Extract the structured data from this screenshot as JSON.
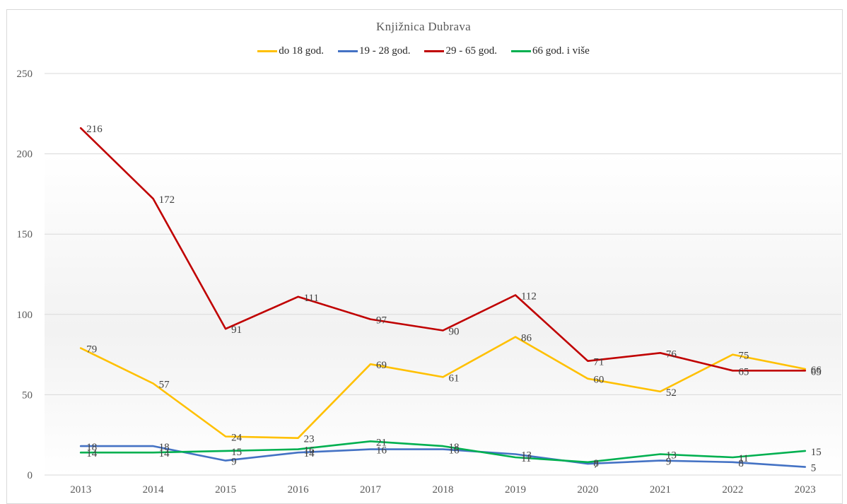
{
  "chart_data": {
    "type": "line",
    "title": "Knjižnica  Dubrava",
    "categories": [
      "2013",
      "2014",
      "2015",
      "2016",
      "2017",
      "2018",
      "2019",
      "2020",
      "2021",
      "2022",
      "2023"
    ],
    "ylim": [
      0,
      250
    ],
    "yticks": [
      0,
      50,
      100,
      150,
      200,
      250
    ],
    "grid": true,
    "legend": "top",
    "series": [
      {
        "name": "do 18 god.",
        "color": "#ffc000",
        "values": [
          79,
          57,
          24,
          23,
          69,
          61,
          86,
          60,
          52,
          75,
          66
        ]
      },
      {
        "name": "19 - 28 god.",
        "color": "#4472c4",
        "values": [
          18,
          18,
          9,
          14,
          16,
          16,
          13,
          7,
          9,
          8,
          5
        ]
      },
      {
        "name": "29 - 65 god.",
        "color": "#c00000",
        "values": [
          216,
          172,
          91,
          111,
          97,
          90,
          112,
          71,
          76,
          65,
          65
        ]
      },
      {
        "name": "66 god. i više",
        "color": "#00b050",
        "values": [
          14,
          14,
          15,
          16,
          21,
          18,
          11,
          8,
          13,
          11,
          15
        ]
      }
    ]
  }
}
